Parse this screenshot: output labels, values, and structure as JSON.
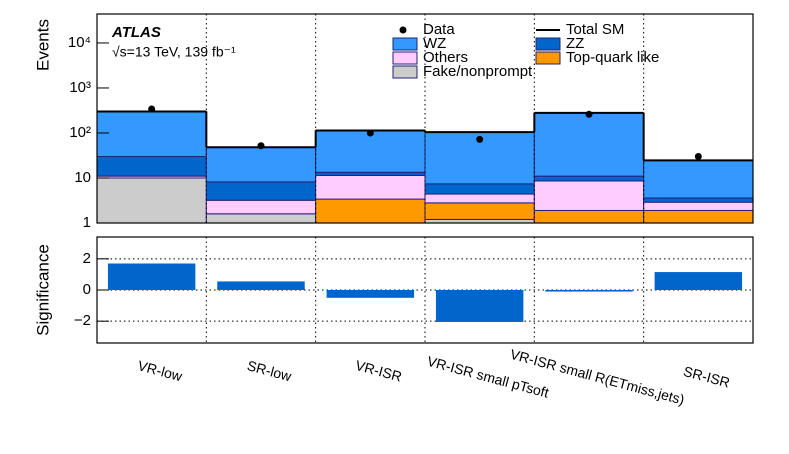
{
  "chart_data": [
    {
      "type": "stacked-bar",
      "title": "ATLAS",
      "subtitle": "√s=13 TeV, 139 fb⁻¹",
      "y_label": "Events",
      "log_y": true,
      "ylim": [
        1,
        44000
      ],
      "yticks": [
        1,
        10,
        {
          "value": 100,
          "label": "10²"
        },
        {
          "value": 1000,
          "label": "10³"
        },
        {
          "value": 10000,
          "label": "10⁴"
        }
      ],
      "series": [
        {
          "name": "Fake/nonprompt",
          "color": "#cccccc",
          "values": [
            10,
            1.6,
            0,
            1.2,
            0,
            0
          ]
        },
        {
          "name": "Top-quark like",
          "color": "#ff9900",
          "values": [
            0,
            0,
            3.4,
            1.6,
            1.9,
            1.9
          ]
        },
        {
          "name": "Others",
          "color": "#ffccff",
          "values": [
            1,
            1.6,
            8,
            1.6,
            6.7,
            1
          ]
        },
        {
          "name": "ZZ",
          "color": "#0066cc",
          "values": [
            19,
            5,
            2,
            3,
            2.4,
            0.7
          ]
        },
        {
          "name": "WZ",
          "color": "#3399ff",
          "values": [
            270,
            40,
            100,
            97,
            269,
            21
          ]
        }
      ],
      "data_points": {
        "name": "Data",
        "color": "#000000",
        "values": [
          340,
          52,
          100,
          72,
          260,
          30
        ]
      },
      "total_name": "Total SM"
    },
    {
      "type": "bar",
      "y_label": "Significance",
      "color": "#0066cc",
      "categories": [
        "VR-low",
        "SR-low",
        "VR-ISR",
        "VR-ISR small pTsoft",
        "VR-ISR small R(ETmiss,jets)",
        "SR-ISR"
      ],
      "values": [
        1.7,
        0.55,
        -0.5,
        -2.05,
        -0.1,
        1.15
      ],
      "ylim": [
        -3.4,
        3.4
      ],
      "yticks": [
        {
          "value": -2,
          "label": "−2"
        },
        0,
        2
      ],
      "grid": true
    }
  ]
}
